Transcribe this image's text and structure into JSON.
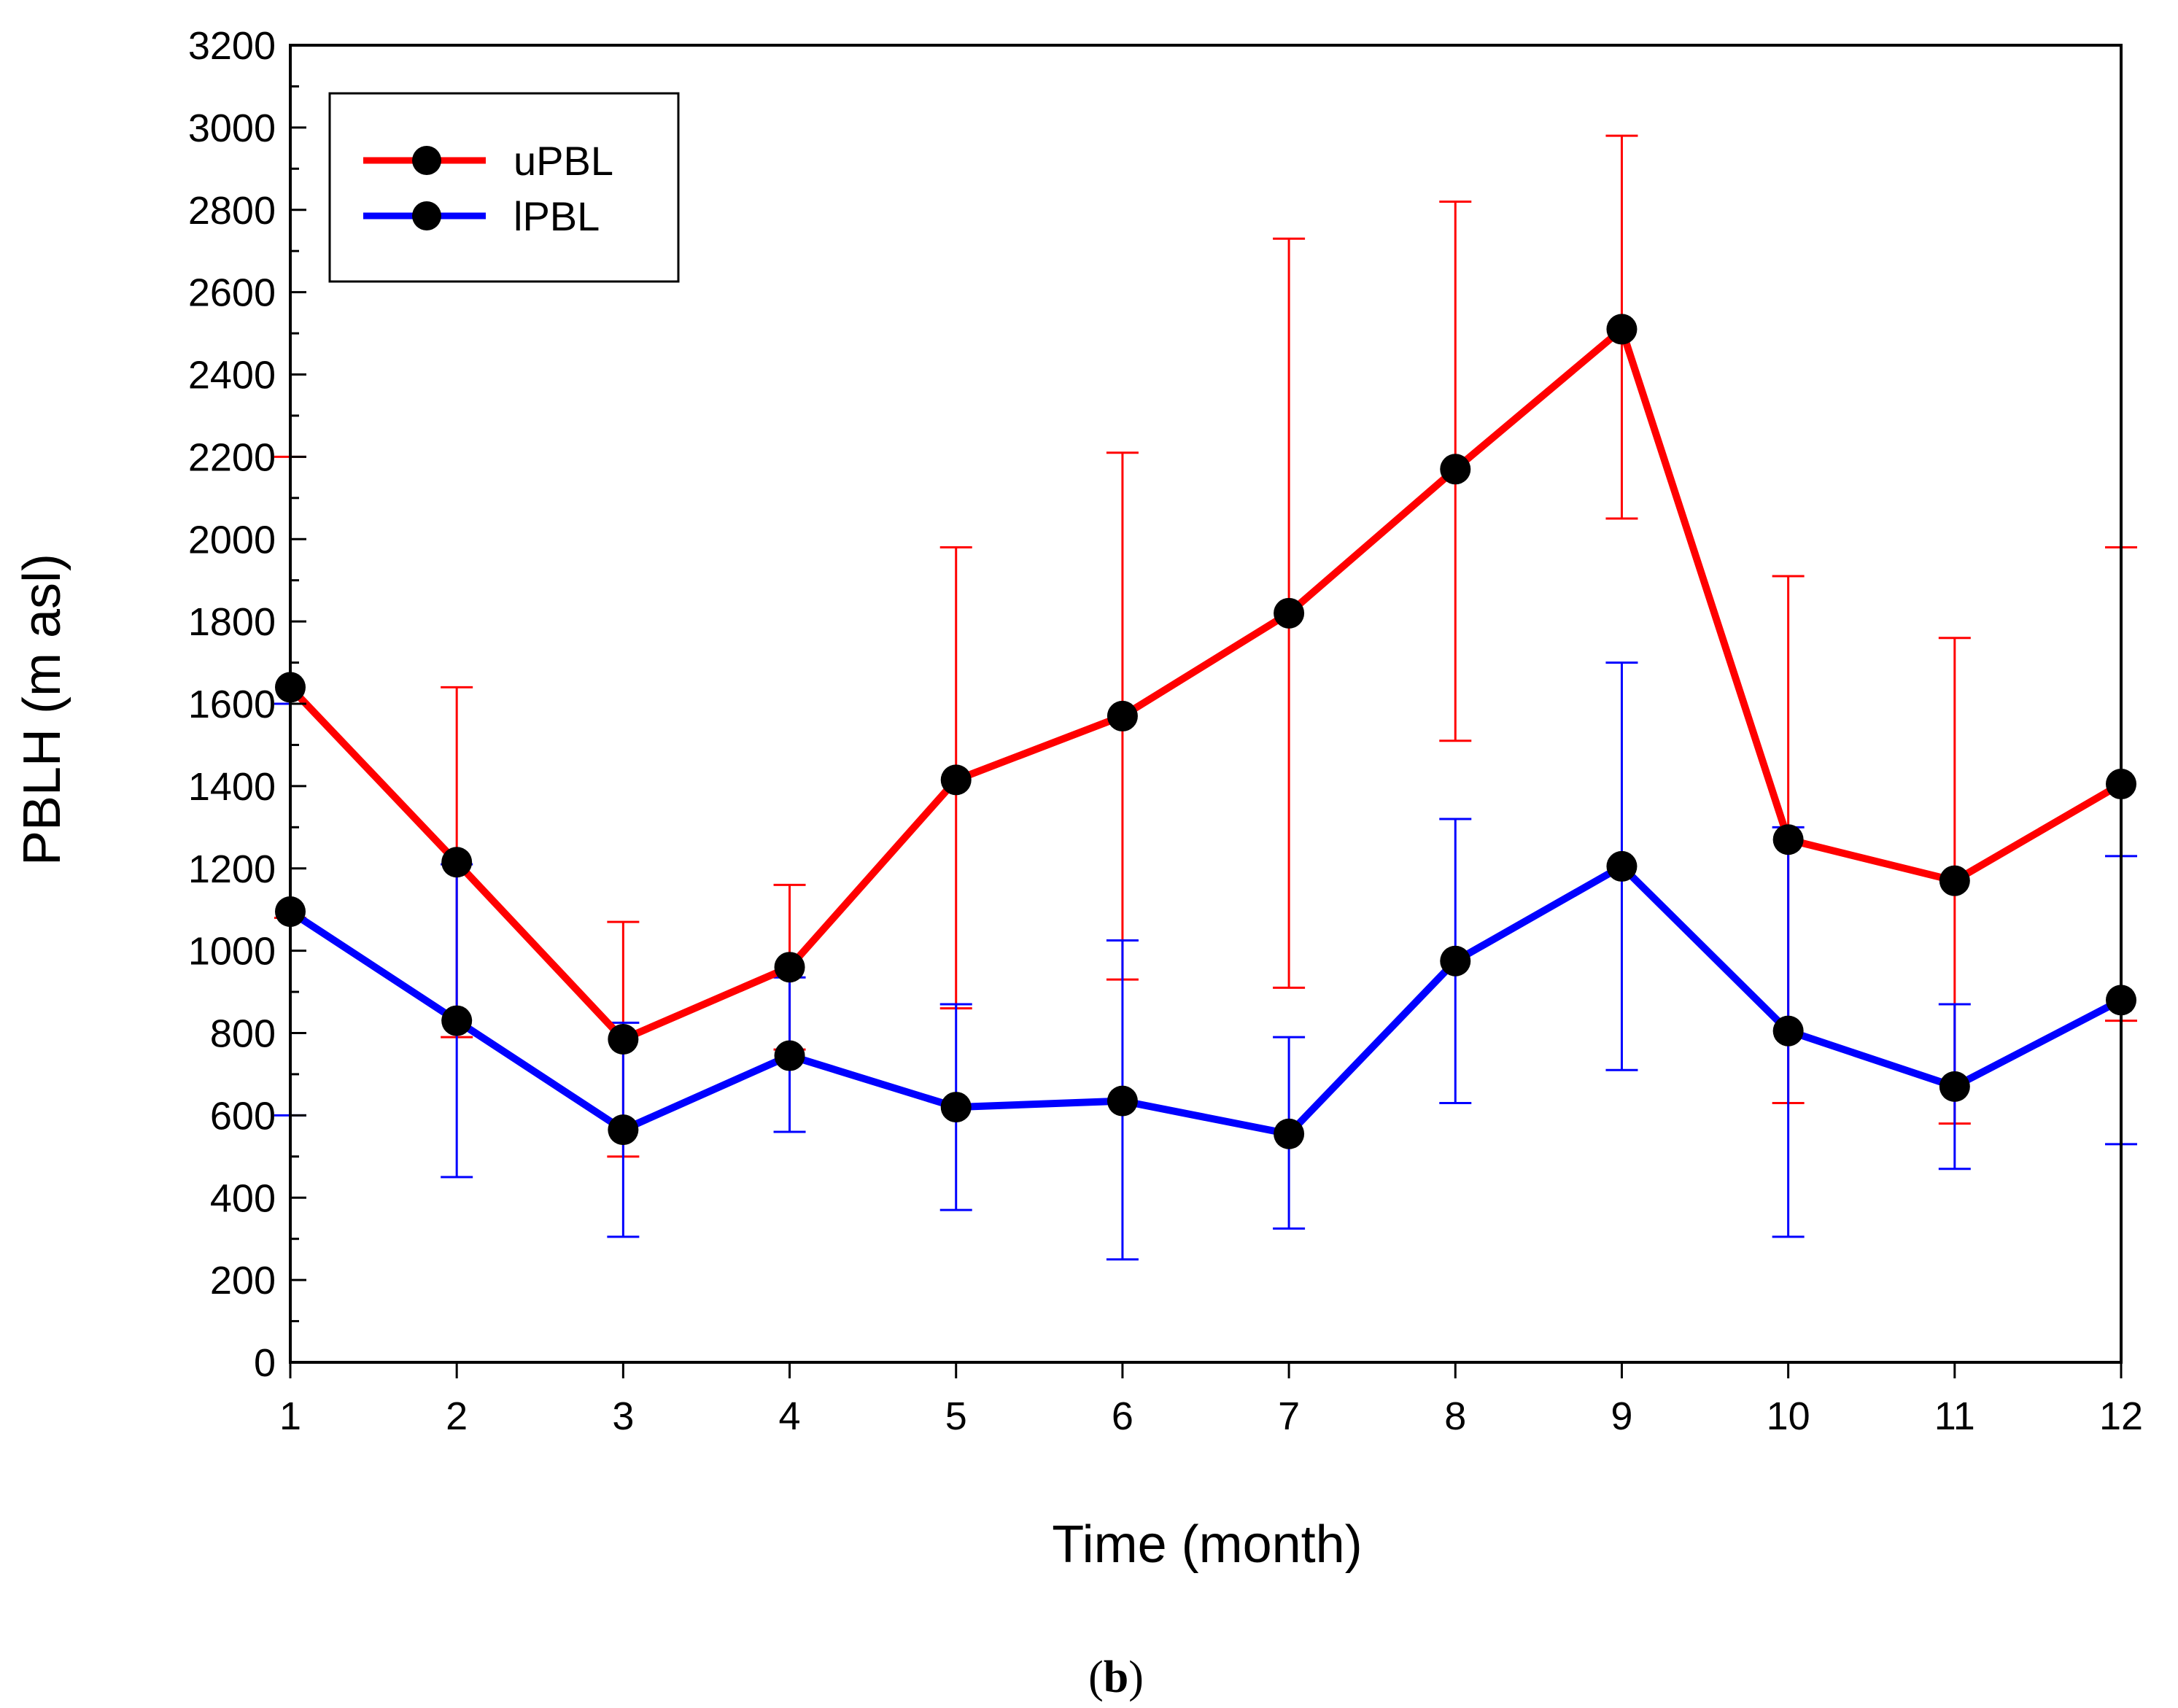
{
  "chart_data": {
    "type": "line",
    "title": "",
    "xlabel": "Time (month)",
    "ylabel": "PBLH (m asl)",
    "xlim": [
      1,
      12
    ],
    "ylim": [
      0,
      3200
    ],
    "x_ticks": [
      1,
      2,
      3,
      4,
      5,
      6,
      7,
      8,
      9,
      10,
      11,
      12
    ],
    "y_ticks": [
      0,
      200,
      400,
      600,
      800,
      1000,
      1200,
      1400,
      1600,
      1800,
      2000,
      2200,
      2400,
      2600,
      2800,
      3000,
      3200
    ],
    "grid": false,
    "legend_position": "top-left",
    "error_bars": true,
    "series": [
      {
        "name": "uPBL",
        "color": "#ff0000",
        "marker_color": "#000000",
        "x": [
          1,
          2,
          3,
          4,
          5,
          6,
          7,
          8,
          9,
          10,
          11,
          12
        ],
        "y": [
          1640,
          1215,
          785,
          960,
          1415,
          1570,
          1820,
          2170,
          2510,
          1270,
          1170,
          1405
        ],
        "err_low": [
          1080,
          790,
          500,
          760,
          860,
          930,
          910,
          1510,
          2050,
          630,
          580,
          830
        ],
        "err_high": [
          2200,
          1640,
          1070,
          1160,
          1980,
          2210,
          2730,
          2820,
          2980,
          1910,
          1760,
          1980
        ]
      },
      {
        "name": "lPBL",
        "color": "#0000ff",
        "marker_color": "#000000",
        "x": [
          1,
          2,
          3,
          4,
          5,
          6,
          7,
          8,
          9,
          10,
          11,
          12
        ],
        "y": [
          1095,
          830,
          565,
          745,
          620,
          635,
          555,
          975,
          1205,
          805,
          670,
          880
        ],
        "err_low": [
          600,
          450,
          305,
          560,
          370,
          250,
          325,
          630,
          710,
          305,
          470,
          530
        ],
        "err_high": [
          1600,
          1210,
          825,
          935,
          870,
          1025,
          790,
          1320,
          1700,
          1300,
          870,
          1230
        ]
      }
    ],
    "caption_letter": "b"
  }
}
